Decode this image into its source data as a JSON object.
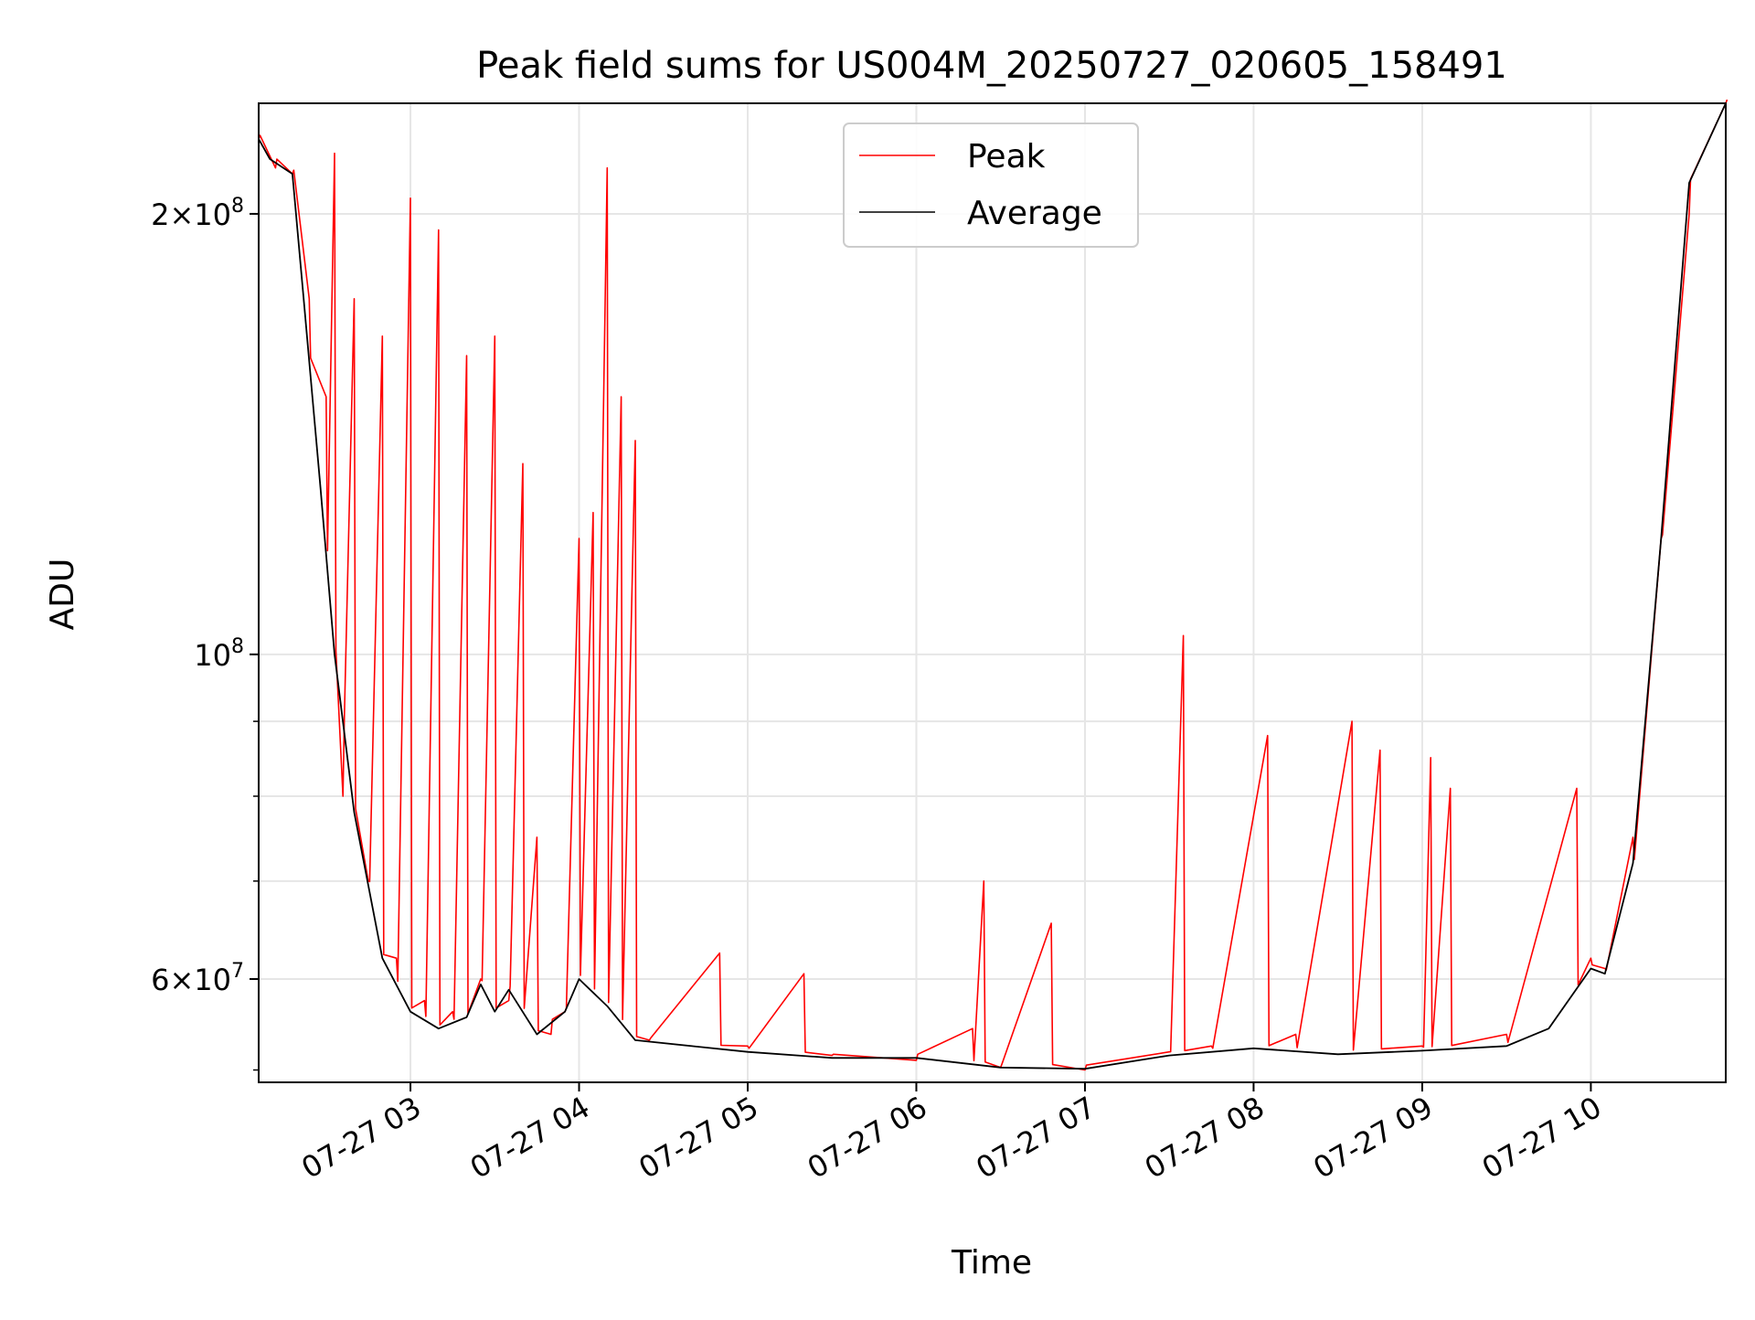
{
  "chart_data": {
    "type": "line",
    "title": "Peak field sums for US004M_20250727_020605_158491",
    "xlabel": "Time",
    "ylabel": "ADU",
    "yscale": "log",
    "ylim": [
      51000000,
      238000000
    ],
    "xlim": [
      "07-27 02:06",
      "07-27 10:48"
    ],
    "grid": true,
    "legend_position": "top-center",
    "x_ticks": [
      "07-27 03",
      "07-27 04",
      "07-27 05",
      "07-27 06",
      "07-27 07",
      "07-27 08",
      "07-27 09",
      "07-27 10"
    ],
    "y_ticks": [
      {
        "value": 60000000,
        "mant": "6",
        "exp": "7"
      },
      {
        "value": 100000000,
        "mant": "",
        "exp": "8"
      },
      {
        "value": 200000000,
        "mant": "2",
        "exp": "8"
      }
    ],
    "series": [
      {
        "name": "Peak",
        "color": "#ff0000",
        "points": [
          {
            "t": "02:06",
            "y": 225000000
          },
          {
            "t": "02:12",
            "y": 215000000
          },
          {
            "t": "02:18",
            "y": 213000000
          },
          {
            "t": "02:24",
            "y": 175000000
          },
          {
            "t": "02:30",
            "y": 150000000
          },
          {
            "t": "02:33",
            "y": 220000000
          },
          {
            "t": "02:36",
            "y": 80000000
          },
          {
            "t": "02:40",
            "y": 175000000
          },
          {
            "t": "02:45",
            "y": 70000000
          },
          {
            "t": "02:50",
            "y": 165000000
          },
          {
            "t": "02:55",
            "y": 62000000
          },
          {
            "t": "03:00",
            "y": 205000000
          },
          {
            "t": "03:05",
            "y": 58000000
          },
          {
            "t": "03:10",
            "y": 195000000
          },
          {
            "t": "03:15",
            "y": 57000000
          },
          {
            "t": "03:20",
            "y": 160000000
          },
          {
            "t": "03:25",
            "y": 60000000
          },
          {
            "t": "03:30",
            "y": 165000000
          },
          {
            "t": "03:35",
            "y": 58000000
          },
          {
            "t": "03:40",
            "y": 135000000
          },
          {
            "t": "03:45",
            "y": 75000000
          },
          {
            "t": "03:50",
            "y": 55000000
          },
          {
            "t": "03:55",
            "y": 57000000
          },
          {
            "t": "04:00",
            "y": 120000000
          },
          {
            "t": "04:05",
            "y": 125000000
          },
          {
            "t": "04:10",
            "y": 215000000
          },
          {
            "t": "04:15",
            "y": 150000000
          },
          {
            "t": "04:20",
            "y": 140000000
          },
          {
            "t": "04:25",
            "y": 54500000
          },
          {
            "t": "04:50",
            "y": 62500000
          },
          {
            "t": "05:00",
            "y": 54000000
          },
          {
            "t": "05:20",
            "y": 60500000
          },
          {
            "t": "05:30",
            "y": 53200000
          },
          {
            "t": "06:00",
            "y": 52800000
          },
          {
            "t": "06:20",
            "y": 55500000
          },
          {
            "t": "06:24",
            "y": 70000000
          },
          {
            "t": "06:30",
            "y": 52200000
          },
          {
            "t": "06:48",
            "y": 65500000
          },
          {
            "t": "07:00",
            "y": 52000000
          },
          {
            "t": "07:30",
            "y": 53500000
          },
          {
            "t": "07:35",
            "y": 103000000
          },
          {
            "t": "07:45",
            "y": 54000000
          },
          {
            "t": "08:05",
            "y": 88000000
          },
          {
            "t": "08:15",
            "y": 55000000
          },
          {
            "t": "08:35",
            "y": 90000000
          },
          {
            "t": "08:45",
            "y": 86000000
          },
          {
            "t": "09:00",
            "y": 54000000
          },
          {
            "t": "09:03",
            "y": 85000000
          },
          {
            "t": "09:10",
            "y": 81000000
          },
          {
            "t": "09:30",
            "y": 55000000
          },
          {
            "t": "09:55",
            "y": 81000000
          },
          {
            "t": "10:00",
            "y": 62000000
          },
          {
            "t": "10:05",
            "y": 61000000
          },
          {
            "t": "10:15",
            "y": 75000000
          },
          {
            "t": "10:25",
            "y": 120000000
          },
          {
            "t": "10:35",
            "y": 200000000
          },
          {
            "t": "10:48",
            "y": 238000000
          }
        ]
      },
      {
        "name": "Average",
        "color": "#000000",
        "points": [
          {
            "t": "02:06",
            "y": 225000000
          },
          {
            "t": "02:10",
            "y": 218000000
          },
          {
            "t": "02:18",
            "y": 213000000
          },
          {
            "t": "02:22",
            "y": 175000000
          },
          {
            "t": "02:28",
            "y": 130000000
          },
          {
            "t": "02:33",
            "y": 100000000
          },
          {
            "t": "02:40",
            "y": 78000000
          },
          {
            "t": "02:50",
            "y": 62000000
          },
          {
            "t": "03:00",
            "y": 57000000
          },
          {
            "t": "03:10",
            "y": 55500000
          },
          {
            "t": "03:20",
            "y": 56500000
          },
          {
            "t": "03:25",
            "y": 59500000
          },
          {
            "t": "03:30",
            "y": 57000000
          },
          {
            "t": "03:35",
            "y": 59000000
          },
          {
            "t": "03:45",
            "y": 55000000
          },
          {
            "t": "03:55",
            "y": 57000000
          },
          {
            "t": "04:00",
            "y": 60000000
          },
          {
            "t": "04:10",
            "y": 57500000
          },
          {
            "t": "04:20",
            "y": 54500000
          },
          {
            "t": "05:00",
            "y": 53500000
          },
          {
            "t": "05:30",
            "y": 53000000
          },
          {
            "t": "06:00",
            "y": 53000000
          },
          {
            "t": "06:30",
            "y": 52200000
          },
          {
            "t": "07:00",
            "y": 52100000
          },
          {
            "t": "07:30",
            "y": 53200000
          },
          {
            "t": "08:00",
            "y": 53800000
          },
          {
            "t": "08:30",
            "y": 53300000
          },
          {
            "t": "09:00",
            "y": 53600000
          },
          {
            "t": "09:30",
            "y": 54000000
          },
          {
            "t": "09:45",
            "y": 55500000
          },
          {
            "t": "10:00",
            "y": 61000000
          },
          {
            "t": "10:05",
            "y": 60500000
          },
          {
            "t": "10:15",
            "y": 72000000
          },
          {
            "t": "10:25",
            "y": 120000000
          },
          {
            "t": "10:35",
            "y": 210000000
          },
          {
            "t": "10:48",
            "y": 238000000
          }
        ]
      }
    ]
  }
}
